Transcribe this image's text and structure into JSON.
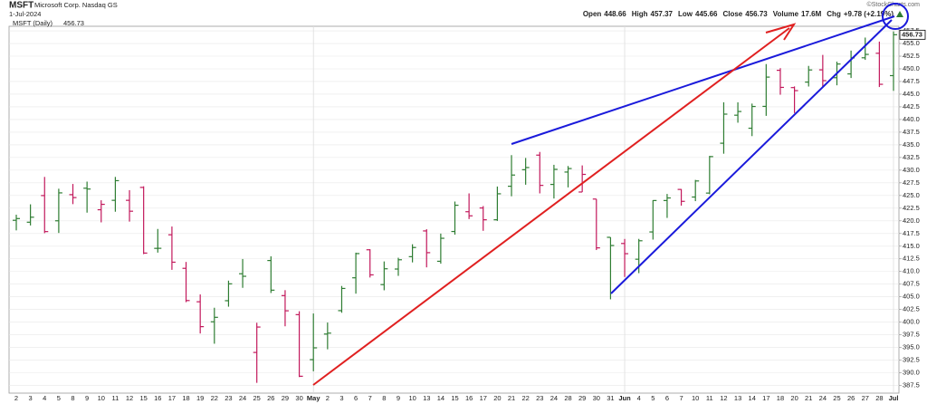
{
  "header": {
    "symbol": "MSFT",
    "name": "Microsoft Corp. Nasdaq GS",
    "date": "1-Jul-2024",
    "stats": [
      {
        "label": "Open",
        "value": "448.66"
      },
      {
        "label": "High",
        "value": "457.37"
      },
      {
        "label": "Low",
        "value": "445.66"
      },
      {
        "label": "Close",
        "value": "456.73"
      },
      {
        "label": "Volume",
        "value": "17.6M"
      },
      {
        "label": "Chg",
        "value": "+9.78 (+2.19%)"
      }
    ],
    "credit": "©StockCharts.com"
  },
  "chart_data": {
    "type": "ohlc",
    "categories": [
      "2",
      "3",
      "4",
      "5",
      "8",
      "9",
      "10",
      "11",
      "12",
      "15",
      "16",
      "17",
      "18",
      "19",
      "22",
      "23",
      "24",
      "25",
      "26",
      "29",
      "30",
      "May",
      "2",
      "3",
      "6",
      "7",
      "8",
      "9",
      "10",
      "13",
      "14",
      "15",
      "16",
      "17",
      "20",
      "21",
      "22",
      "23",
      "24",
      "28",
      "29",
      "30",
      "31",
      "Jun",
      "4",
      "5",
      "6",
      "7",
      "10",
      "11",
      "12",
      "13",
      "14",
      "17",
      "18",
      "20",
      "21",
      "24",
      "25",
      "26",
      "27",
      "28",
      "Jul"
    ],
    "series": [
      {
        "name": "MSFT (Daily)",
        "open": [
          420.11,
          419.73,
          424.99,
          420.01,
          425.17,
          426.44,
          422.19,
          424.05,
          424.05,
          426.6,
          414.57,
          417.25,
          410.63,
          404.03,
          400.08,
          404.24,
          409.56,
          394.03,
          412.17,
          405.25,
          401.49,
          392.61,
          397.66,
          402.28,
          408.76,
          414.29,
          407.42,
          410.49,
          412.93,
          418.01,
          412.02,
          417.9,
          421.8,
          422.54,
          420.21,
          426.83,
          430.09,
          432.97,
          427.19,
          429.63,
          425.69,
          424.3,
          416.75,
          415.53,
          412.43,
          417.81,
          424.01,
          426.2,
          424.7,
          425.48,
          435.32,
          440.85,
          438.28,
          442.59,
          449.71,
          446.3,
          447.38,
          449.8,
          448.25,
          449.0,
          452.18,
          453.07,
          448.66
        ],
        "high": [
          421.21,
          423.26,
          428.67,
          426.34,
          427.28,
          427.74,
          424.06,
          428.67,
          426.06,
          426.82,
          418.4,
          418.88,
          411.89,
          405.48,
          402.85,
          408.2,
          412.47,
          399.89,
          413.0,
          406.32,
          402.16,
          401.72,
          399.93,
          407.15,
          413.72,
          414.4,
          411.99,
          412.72,
          415.38,
          418.35,
          417.49,
          423.81,
          425.42,
          422.92,
          426.77,
          432.97,
          432.41,
          433.6,
          431.06,
          430.82,
          430.94,
          424.3,
          416.75,
          416.43,
          416.44,
          424.08,
          425.31,
          426.28,
          428.08,
          432.82,
          443.4,
          443.39,
          443.14,
          450.94,
          450.14,
          446.53,
          450.58,
          452.75,
          451.42,
          453.6,
          456.17,
          455.38,
          457.37
        ],
        "low": [
          418.12,
          419.09,
          417.57,
          417.61,
          423.3,
          421.62,
          419.7,
          421.8,
          419.85,
          413.43,
          413.73,
          410.33,
          403.95,
          397.77,
          395.75,
          403.06,
          406.78,
          388.03,
          405.76,
          399.19,
          389.17,
          390.31,
          394.65,
          401.86,
          405.63,
          408.82,
          406.3,
          409.14,
          411.8,
          410.82,
          411.55,
          417.27,
          420.35,
          418.03,
          419.99,
          424.85,
          427.13,
          425.42,
          424.41,
          426.6,
          425.69,
          414.24,
          404.51,
          408.92,
          409.68,
          416.3,
          420.58,
          423.0,
          423.89,
          425.25,
          433.25,
          439.37,
          436.72,
          440.72,
          444.89,
          441.27,
          446.51,
          446.41,
          446.75,
          448.19,
          451.77,
          446.41,
          445.66
        ],
        "close": [
          420.45,
          420.72,
          417.88,
          425.52,
          424.59,
          426.28,
          423.26,
          427.93,
          421.9,
          413.64,
          414.58,
          411.84,
          404.27,
          399.12,
          400.96,
          407.57,
          409.06,
          399.04,
          406.32,
          402.25,
          389.33,
          394.94,
          397.84,
          406.66,
          413.54,
          409.34,
          410.54,
          412.32,
          414.74,
          413.72,
          416.56,
          423.08,
          420.99,
          420.21,
          425.34,
          429.04,
          430.52,
          427.0,
          430.16,
          430.32,
          429.17,
          414.67,
          415.13,
          413.52,
          416.07,
          424.01,
          424.52,
          423.85,
          427.87,
          432.68,
          441.06,
          441.58,
          442.57,
          448.37,
          446.34,
          445.7,
          449.78,
          447.67,
          450.95,
          452.16,
          452.85,
          446.95,
          456.73
        ]
      }
    ],
    "up_color": "#2e7d32",
    "down_color": "#c2185b",
    "ylim": [
      386,
      458.4
    ],
    "yticks": [
      387.5,
      {
        "value": 390,
        "label": "390.0"
      },
      392.5,
      {
        "value": 395,
        "label": "395.0"
      },
      397.5,
      {
        "value": 400,
        "label": "400.0"
      },
      402.5,
      {
        "value": 405,
        "label": "405.0"
      },
      407.5,
      {
        "value": 410,
        "label": "410.0"
      },
      412.5,
      {
        "value": 415,
        "label": "415.0"
      },
      417.5,
      {
        "value": 420,
        "label": "420.0"
      },
      422.5,
      {
        "value": 425,
        "label": "425.0"
      },
      427.5,
      {
        "value": 430,
        "label": "430.0"
      },
      432.5,
      {
        "value": 435,
        "label": "435.0"
      },
      437.5,
      {
        "value": 440,
        "label": "440.0"
      },
      442.5,
      {
        "value": 445,
        "label": "445.0"
      },
      447.5,
      {
        "value": 450,
        "label": "450.0"
      },
      452.5,
      {
        "value": 455,
        "label": "455.0"
      },
      457.5
    ],
    "grid": true
  }
}
